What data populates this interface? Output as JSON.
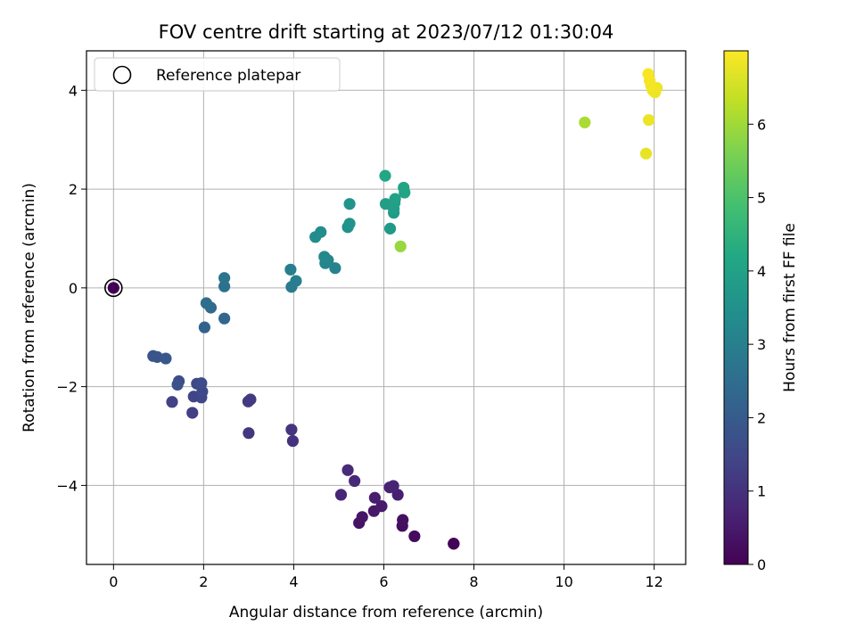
{
  "chart_data": {
    "type": "scatter",
    "title": "FOV centre drift starting at 2023/07/12 01:30:04",
    "xlabel": "Angular distance from reference (arcmin)",
    "ylabel": "Rotation from reference (arcmin)",
    "xlim": [
      -0.6,
      12.7
    ],
    "ylim": [
      -5.6,
      4.8
    ],
    "xticks": [
      "0",
      "2",
      "4",
      "6",
      "8",
      "10",
      "12"
    ],
    "yticks": [
      "−4",
      "−2",
      "0",
      "2",
      "4"
    ],
    "grid": true,
    "legend": {
      "position": "top-left",
      "label": "Reference platepar"
    },
    "reference_point": {
      "x": 0,
      "y": 0
    },
    "colorbar": {
      "label": "Hours from first FF file",
      "range": [
        0,
        7.0
      ],
      "ticks": [
        "0",
        "1",
        "2",
        "3",
        "4",
        "5",
        "6"
      ],
      "colormap": "viridis"
    },
    "points": [
      {
        "x": 0.0,
        "y": 0.0,
        "t": 0.0
      },
      {
        "x": 7.55,
        "y": -5.18,
        "t": 0.0
      },
      {
        "x": 7.55,
        "y": -5.18,
        "t": 0.05
      },
      {
        "x": 6.68,
        "y": -5.03,
        "t": 0.2
      },
      {
        "x": 6.41,
        "y": -4.82,
        "t": 0.25
      },
      {
        "x": 6.42,
        "y": -4.7,
        "t": 0.3
      },
      {
        "x": 5.45,
        "y": -4.76,
        "t": 0.35
      },
      {
        "x": 5.52,
        "y": -4.64,
        "t": 0.4
      },
      {
        "x": 5.78,
        "y": -4.52,
        "t": 0.45
      },
      {
        "x": 5.95,
        "y": -4.42,
        "t": 0.5
      },
      {
        "x": 5.8,
        "y": -4.25,
        "t": 0.55
      },
      {
        "x": 6.31,
        "y": -4.19,
        "t": 0.6
      },
      {
        "x": 6.13,
        "y": -4.04,
        "t": 0.65
      },
      {
        "x": 6.21,
        "y": -4.01,
        "t": 0.7
      },
      {
        "x": 5.05,
        "y": -4.19,
        "t": 0.75
      },
      {
        "x": 5.35,
        "y": -3.91,
        "t": 0.8
      },
      {
        "x": 5.2,
        "y": -3.69,
        "t": 0.85
      },
      {
        "x": 3.98,
        "y": -3.1,
        "t": 1.0
      },
      {
        "x": 3.95,
        "y": -2.87,
        "t": 1.05
      },
      {
        "x": 3.0,
        "y": -2.94,
        "t": 1.1
      },
      {
        "x": 2.99,
        "y": -2.3,
        "t": 1.15
      },
      {
        "x": 3.04,
        "y": -2.26,
        "t": 1.2
      },
      {
        "x": 1.75,
        "y": -2.53,
        "t": 1.3
      },
      {
        "x": 1.3,
        "y": -2.31,
        "t": 1.35
      },
      {
        "x": 1.78,
        "y": -2.2,
        "t": 1.4
      },
      {
        "x": 1.95,
        "y": -2.22,
        "t": 1.45
      },
      {
        "x": 1.97,
        "y": -2.1,
        "t": 1.5
      },
      {
        "x": 1.85,
        "y": -1.94,
        "t": 1.55
      },
      {
        "x": 1.95,
        "y": -1.93,
        "t": 1.6
      },
      {
        "x": 1.45,
        "y": -1.89,
        "t": 1.65
      },
      {
        "x": 1.42,
        "y": -1.96,
        "t": 1.7
      },
      {
        "x": 0.88,
        "y": -1.38,
        "t": 1.8
      },
      {
        "x": 0.97,
        "y": -1.4,
        "t": 1.85
      },
      {
        "x": 1.16,
        "y": -1.43,
        "t": 1.9
      },
      {
        "x": 2.02,
        "y": -0.8,
        "t": 2.2
      },
      {
        "x": 2.46,
        "y": -0.62,
        "t": 2.3
      },
      {
        "x": 2.16,
        "y": -0.4,
        "t": 2.4
      },
      {
        "x": 2.06,
        "y": -0.31,
        "t": 2.5
      },
      {
        "x": 2.46,
        "y": 0.03,
        "t": 2.6
      },
      {
        "x": 2.46,
        "y": 0.2,
        "t": 2.7
      },
      {
        "x": 3.95,
        "y": 0.02,
        "t": 2.9
      },
      {
        "x": 4.05,
        "y": 0.14,
        "t": 2.95
      },
      {
        "x": 3.93,
        "y": 0.37,
        "t": 3.0
      },
      {
        "x": 4.92,
        "y": 0.4,
        "t": 3.1
      },
      {
        "x": 4.7,
        "y": 0.5,
        "t": 3.15
      },
      {
        "x": 4.76,
        "y": 0.56,
        "t": 3.2
      },
      {
        "x": 4.68,
        "y": 0.63,
        "t": 3.25
      },
      {
        "x": 4.48,
        "y": 1.03,
        "t": 3.35
      },
      {
        "x": 4.6,
        "y": 1.13,
        "t": 3.4
      },
      {
        "x": 5.2,
        "y": 1.23,
        "t": 3.5
      },
      {
        "x": 5.24,
        "y": 1.3,
        "t": 3.55
      },
      {
        "x": 5.24,
        "y": 1.7,
        "t": 3.6
      },
      {
        "x": 6.14,
        "y": 1.2,
        "t": 3.75
      },
      {
        "x": 6.22,
        "y": 1.52,
        "t": 3.8
      },
      {
        "x": 6.22,
        "y": 1.6,
        "t": 3.85
      },
      {
        "x": 6.04,
        "y": 1.7,
        "t": 3.9
      },
      {
        "x": 6.24,
        "y": 1.72,
        "t": 3.95
      },
      {
        "x": 6.25,
        "y": 1.8,
        "t": 4.0
      },
      {
        "x": 6.46,
        "y": 1.93,
        "t": 4.05
      },
      {
        "x": 6.44,
        "y": 2.03,
        "t": 4.1
      },
      {
        "x": 6.03,
        "y": 2.27,
        "t": 4.15
      },
      {
        "x": 6.37,
        "y": 0.84,
        "t": 5.9
      },
      {
        "x": 10.46,
        "y": 3.35,
        "t": 6.1
      },
      {
        "x": 11.82,
        "y": 2.72,
        "t": 6.75
      },
      {
        "x": 11.88,
        "y": 3.4,
        "t": 6.8
      },
      {
        "x": 12.02,
        "y": 3.96,
        "t": 6.82
      },
      {
        "x": 11.97,
        "y": 4.0,
        "t": 6.84
      },
      {
        "x": 12.06,
        "y": 4.05,
        "t": 6.86
      },
      {
        "x": 11.93,
        "y": 4.1,
        "t": 6.88
      },
      {
        "x": 11.9,
        "y": 4.2,
        "t": 6.9
      },
      {
        "x": 11.87,
        "y": 4.33,
        "t": 6.95
      }
    ]
  }
}
